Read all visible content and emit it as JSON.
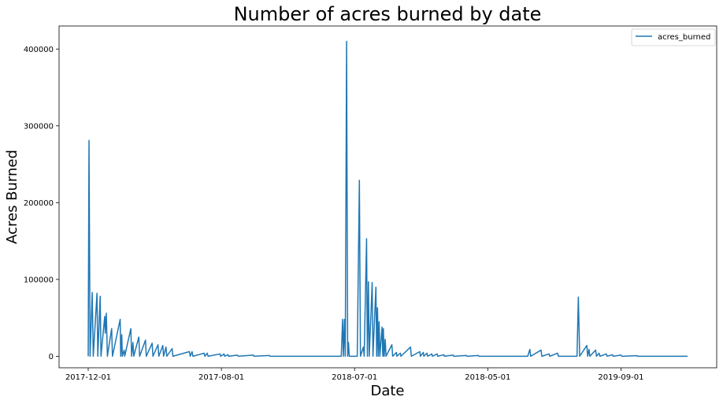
{
  "chart_data": {
    "type": "line",
    "title": "Number of acres burned by date",
    "xlabel": "Date",
    "ylabel": "Acres Burned",
    "x_tick_labels": [
      "2017-12-01",
      "2017-08-01",
      "2018-07-01",
      "2018-05-01",
      "2019-09-01"
    ],
    "x_tick_index": [
      0,
      500,
      1000,
      1500,
      2000
    ],
    "x_index_range": [
      0,
      2250
    ],
    "ylim": [
      -15000,
      430000
    ],
    "y_ticks": [
      0,
      100000,
      200000,
      300000,
      400000
    ],
    "grid": false,
    "legend_position": "top-right",
    "series": [
      {
        "name": "acres_burned",
        "color": "#1f77b4",
        "points": [
          [
            0,
            0
          ],
          [
            3,
            281000
          ],
          [
            7,
            0
          ],
          [
            15,
            83000
          ],
          [
            19,
            0
          ],
          [
            33,
            82000
          ],
          [
            36,
            0
          ],
          [
            45,
            78000
          ],
          [
            48,
            0
          ],
          [
            62,
            52000
          ],
          [
            64,
            30000
          ],
          [
            68,
            56000
          ],
          [
            72,
            0
          ],
          [
            88,
            36000
          ],
          [
            91,
            0
          ],
          [
            120,
            48000
          ],
          [
            122,
            0
          ],
          [
            126,
            28000
          ],
          [
            128,
            0
          ],
          [
            135,
            8000
          ],
          [
            137,
            0
          ],
          [
            160,
            36000
          ],
          [
            163,
            0
          ],
          [
            168,
            18000
          ],
          [
            171,
            0
          ],
          [
            190,
            25000
          ],
          [
            193,
            0
          ],
          [
            215,
            21000
          ],
          [
            218,
            0
          ],
          [
            240,
            17000
          ],
          [
            243,
            0
          ],
          [
            262,
            15000
          ],
          [
            265,
            0
          ],
          [
            280,
            14000
          ],
          [
            283,
            0
          ],
          [
            292,
            12000
          ],
          [
            295,
            0
          ],
          [
            315,
            10000
          ],
          [
            318,
            0
          ],
          [
            380,
            6000
          ],
          [
            383,
            0
          ],
          [
            390,
            6000
          ],
          [
            393,
            0
          ],
          [
            435,
            4000
          ],
          [
            438,
            0
          ],
          [
            447,
            4000
          ],
          [
            450,
            0
          ],
          [
            495,
            3000
          ],
          [
            497,
            0
          ],
          [
            510,
            3000
          ],
          [
            512,
            0
          ],
          [
            525,
            2000
          ],
          [
            527,
            0
          ],
          [
            560,
            1500
          ],
          [
            563,
            0
          ],
          [
            620,
            1500
          ],
          [
            622,
            0
          ],
          [
            680,
            1000
          ],
          [
            682,
            0
          ],
          [
            950,
            0
          ],
          [
            955,
            48000
          ],
          [
            958,
            0
          ],
          [
            962,
            48000
          ],
          [
            965,
            0
          ],
          [
            970,
            410000
          ],
          [
            974,
            0
          ],
          [
            977,
            18000
          ],
          [
            980,
            0
          ],
          [
            1010,
            0
          ],
          [
            1018,
            229000
          ],
          [
            1022,
            0
          ],
          [
            1033,
            12000
          ],
          [
            1036,
            0
          ],
          [
            1045,
            153000
          ],
          [
            1048,
            0
          ],
          [
            1052,
            97000
          ],
          [
            1055,
            0
          ],
          [
            1066,
            96000
          ],
          [
            1069,
            0
          ],
          [
            1080,
            90000
          ],
          [
            1083,
            0
          ],
          [
            1086,
            63000
          ],
          [
            1089,
            0
          ],
          [
            1092,
            45000
          ],
          [
            1095,
            0
          ],
          [
            1103,
            38000
          ],
          [
            1106,
            0
          ],
          [
            1108,
            36000
          ],
          [
            1111,
            0
          ],
          [
            1115,
            22000
          ],
          [
            1118,
            0
          ],
          [
            1140,
            15000
          ],
          [
            1143,
            0
          ],
          [
            1157,
            5000
          ],
          [
            1159,
            0
          ],
          [
            1172,
            4000
          ],
          [
            1174,
            0
          ],
          [
            1210,
            12000
          ],
          [
            1213,
            0
          ],
          [
            1245,
            6000
          ],
          [
            1247,
            0
          ],
          [
            1258,
            5000
          ],
          [
            1260,
            0
          ],
          [
            1272,
            4000
          ],
          [
            1274,
            0
          ],
          [
            1290,
            3000
          ],
          [
            1292,
            0
          ],
          [
            1310,
            3000
          ],
          [
            1312,
            0
          ],
          [
            1335,
            2000
          ],
          [
            1337,
            0
          ],
          [
            1370,
            1500
          ],
          [
            1372,
            0
          ],
          [
            1420,
            1000
          ],
          [
            1422,
            0
          ],
          [
            1465,
            1000
          ],
          [
            1467,
            0
          ],
          [
            1650,
            0
          ],
          [
            1658,
            9000
          ],
          [
            1661,
            0
          ],
          [
            1700,
            8000
          ],
          [
            1703,
            0
          ],
          [
            1730,
            3000
          ],
          [
            1733,
            0
          ],
          [
            1762,
            4000
          ],
          [
            1765,
            0
          ],
          [
            1835,
            0
          ],
          [
            1840,
            77000
          ],
          [
            1845,
            0
          ],
          [
            1872,
            14000
          ],
          [
            1875,
            0
          ],
          [
            1880,
            9000
          ],
          [
            1883,
            0
          ],
          [
            1905,
            8000
          ],
          [
            1908,
            0
          ],
          [
            1918,
            4000
          ],
          [
            1921,
            0
          ],
          [
            1945,
            3000
          ],
          [
            1948,
            0
          ],
          [
            1968,
            2000
          ],
          [
            1971,
            0
          ],
          [
            2000,
            1500
          ],
          [
            2003,
            0
          ],
          [
            2060,
            800
          ],
          [
            2062,
            0
          ],
          [
            2250,
            0
          ]
        ]
      }
    ]
  }
}
